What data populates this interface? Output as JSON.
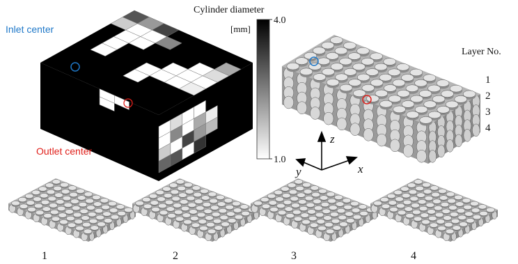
{
  "left_panel": {
    "inlet_label": "Inlet center",
    "outlet_label": "Outlet center",
    "colorbar": {
      "title": "Cylinder diameter",
      "unit": "[mm]",
      "ticks": [
        {
          "value": 4.0,
          "label": "4.0"
        },
        {
          "value": 1.0,
          "label": "1.0"
        }
      ]
    }
  },
  "right_panel": {
    "legend_title": "Layer No.",
    "layers": [
      "1",
      "2",
      "3",
      "4"
    ],
    "axes": {
      "z": "z",
      "y": "y",
      "x": "x"
    }
  },
  "bottom_panels": {
    "labels": [
      "1",
      "2",
      "3",
      "4"
    ]
  }
}
